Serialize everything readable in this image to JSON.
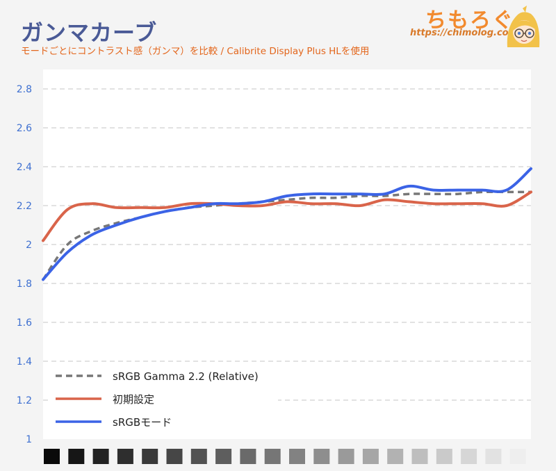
{
  "header": {
    "title": "ガンマカーブ",
    "subtitle": "モードごとにコントラスト感（ガンマ）を比較 / Calibrite Display Plus HLを使用"
  },
  "logo": {
    "text": "ちもろぐ",
    "url": "https://chimolog.co/"
  },
  "colors": {
    "reference": "#777777",
    "default": "#d9644a",
    "srgb": "#3b63e6",
    "grid": "#d0d0d0",
    "tick": "#3d6fd0"
  },
  "chart_data": {
    "type": "line",
    "ylim": [
      1,
      2.9
    ],
    "yticks": [
      "1",
      "1.2",
      "1.4",
      "1.6",
      "1.8",
      "2",
      "2.2",
      "2.4",
      "2.6",
      "2.8"
    ],
    "ytick_values": [
      1,
      1.2,
      1.4,
      1.6,
      1.8,
      2.0,
      2.2,
      2.4,
      2.6,
      2.8
    ],
    "x": [
      0,
      5,
      10,
      15,
      20,
      25,
      30,
      35,
      40,
      45,
      50,
      55,
      60,
      65,
      70,
      75,
      80,
      85,
      90,
      95,
      100
    ],
    "grayscale_steps": 20,
    "legend_position": "bottom-left",
    "series": [
      {
        "name": "sRGB Gamma 2.2 (Relative)",
        "style": "dashed",
        "values": [
          1.82,
          2.0,
          2.07,
          2.11,
          2.14,
          2.17,
          2.19,
          2.2,
          2.21,
          2.22,
          2.23,
          2.24,
          2.24,
          2.25,
          2.25,
          2.26,
          2.26,
          2.26,
          2.27,
          2.27,
          2.27
        ]
      },
      {
        "name": "初期設定",
        "style": "solid",
        "values": [
          2.02,
          2.18,
          2.21,
          2.19,
          2.19,
          2.19,
          2.21,
          2.21,
          2.2,
          2.2,
          2.22,
          2.21,
          2.21,
          2.2,
          2.23,
          2.22,
          2.21,
          2.21,
          2.21,
          2.2,
          2.27
        ]
      },
      {
        "name": "sRGBモード",
        "style": "solid",
        "values": [
          1.82,
          1.96,
          2.05,
          2.1,
          2.14,
          2.17,
          2.19,
          2.21,
          2.21,
          2.22,
          2.25,
          2.26,
          2.26,
          2.26,
          2.26,
          2.3,
          2.28,
          2.28,
          2.28,
          2.28,
          2.39
        ]
      }
    ]
  }
}
